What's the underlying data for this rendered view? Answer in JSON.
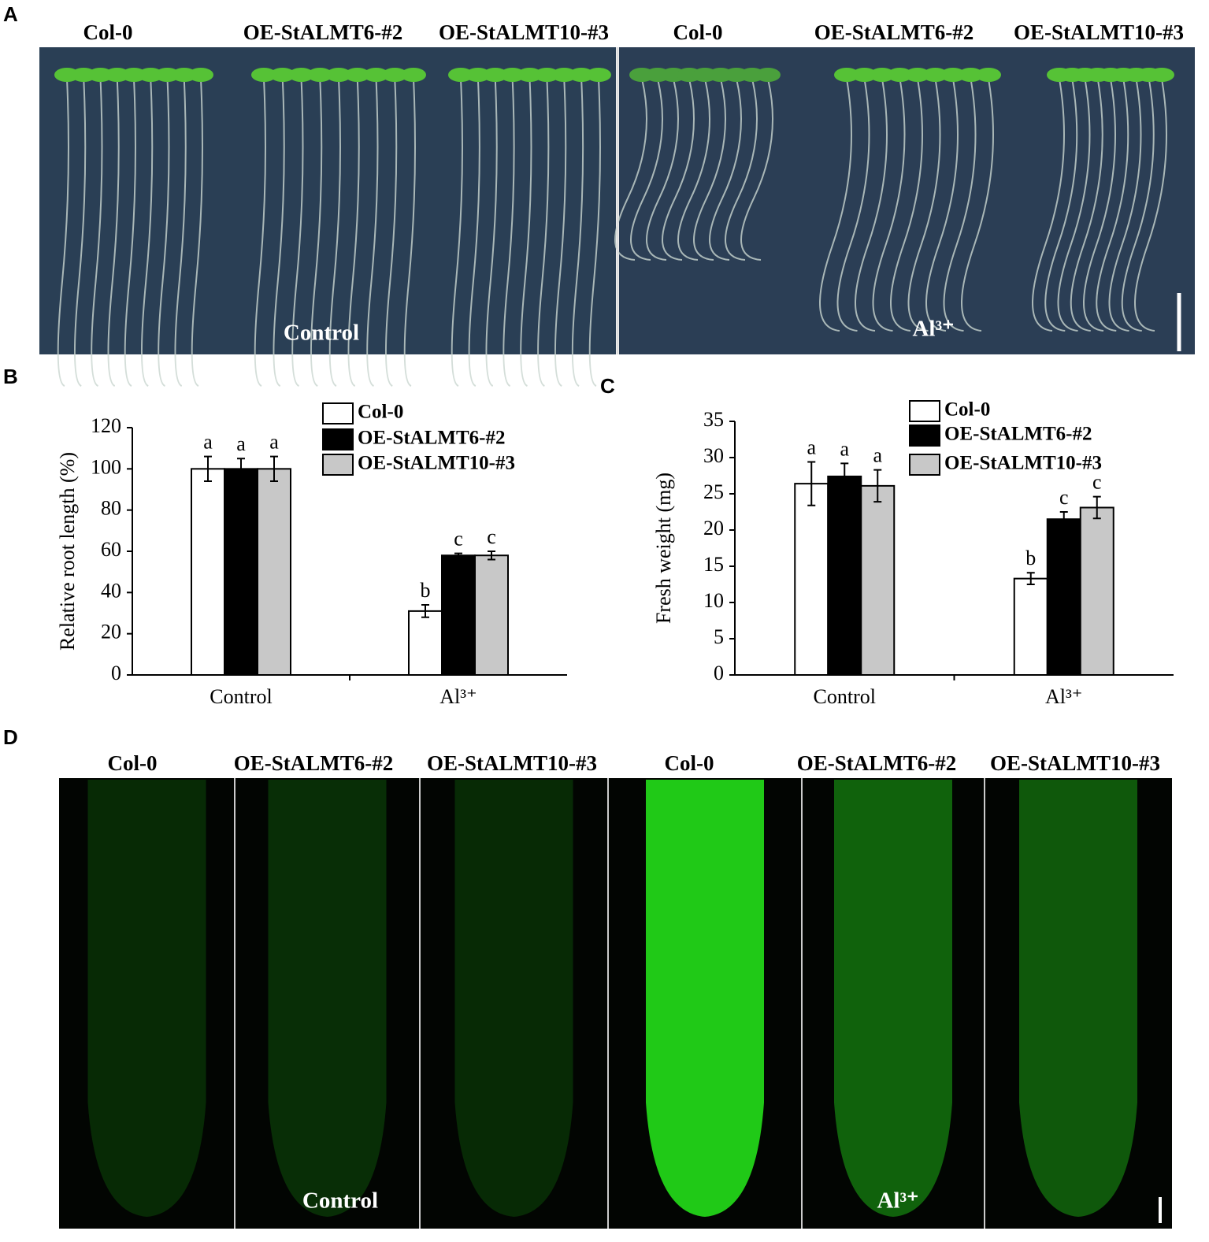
{
  "panel_labels": {
    "a": "A",
    "b": "B",
    "c": "C",
    "d": "D"
  },
  "panel_a": {
    "genotypes": [
      "Col-0",
      "OE-StALMT6-#2",
      "OE-StALMT10-#3",
      "Col-0",
      "OE-StALMT6-#2",
      "OE-StALMT10-#3"
    ],
    "conditions": [
      "Control",
      "Al³⁺"
    ]
  },
  "panel_d": {
    "genotypes": [
      "Col-0",
      "OE-StALMT6-#2",
      "OE-StALMT10-#3",
      "Col-0",
      "OE-StALMT6-#2",
      "OE-StALMT10-#3"
    ],
    "conditions": [
      "Control",
      "Al³⁺"
    ]
  },
  "chart_data": [
    {
      "type": "bar",
      "ylabel": "Relative root  length (%)",
      "categories": [
        "Control",
        "Al³⁺"
      ],
      "series": [
        {
          "name": "Col-0",
          "color": "#ffffff",
          "values": [
            100,
            31
          ],
          "errors": [
            6,
            3
          ],
          "letters": [
            "a",
            "b"
          ]
        },
        {
          "name": "OE-StALMT6-#2",
          "color": "#000000",
          "values": [
            100,
            58
          ],
          "errors": [
            5,
            1
          ],
          "letters": [
            "a",
            "c"
          ]
        },
        {
          "name": "OE-StALMT10-#3",
          "color": "#c8c8c8",
          "values": [
            100,
            58
          ],
          "errors": [
            6,
            2
          ],
          "letters": [
            "a",
            "c"
          ]
        }
      ],
      "ylim": [
        0,
        120
      ],
      "yticks": [
        0,
        20,
        40,
        60,
        80,
        100,
        120
      ]
    },
    {
      "type": "bar",
      "ylabel": "Fresh weight (mg)",
      "categories": [
        "Control",
        "Al³⁺"
      ],
      "series": [
        {
          "name": "Col-0",
          "color": "#ffffff",
          "values": [
            26.4,
            13.3
          ],
          "errors": [
            3,
            0.8
          ],
          "letters": [
            "a",
            "b"
          ]
        },
        {
          "name": "OE-StALMT6-#2",
          "color": "#000000",
          "values": [
            27.4,
            21.5
          ],
          "errors": [
            1.8,
            1
          ],
          "letters": [
            "a",
            "c"
          ]
        },
        {
          "name": "OE-StALMT10-#3",
          "color": "#c8c8c8",
          "values": [
            26.1,
            23.1
          ],
          "errors": [
            2.2,
            1.5
          ],
          "letters": [
            "a",
            "c"
          ]
        }
      ],
      "ylim": [
        0,
        35
      ],
      "yticks": [
        0,
        5,
        10,
        15,
        20,
        25,
        30,
        35
      ]
    }
  ]
}
